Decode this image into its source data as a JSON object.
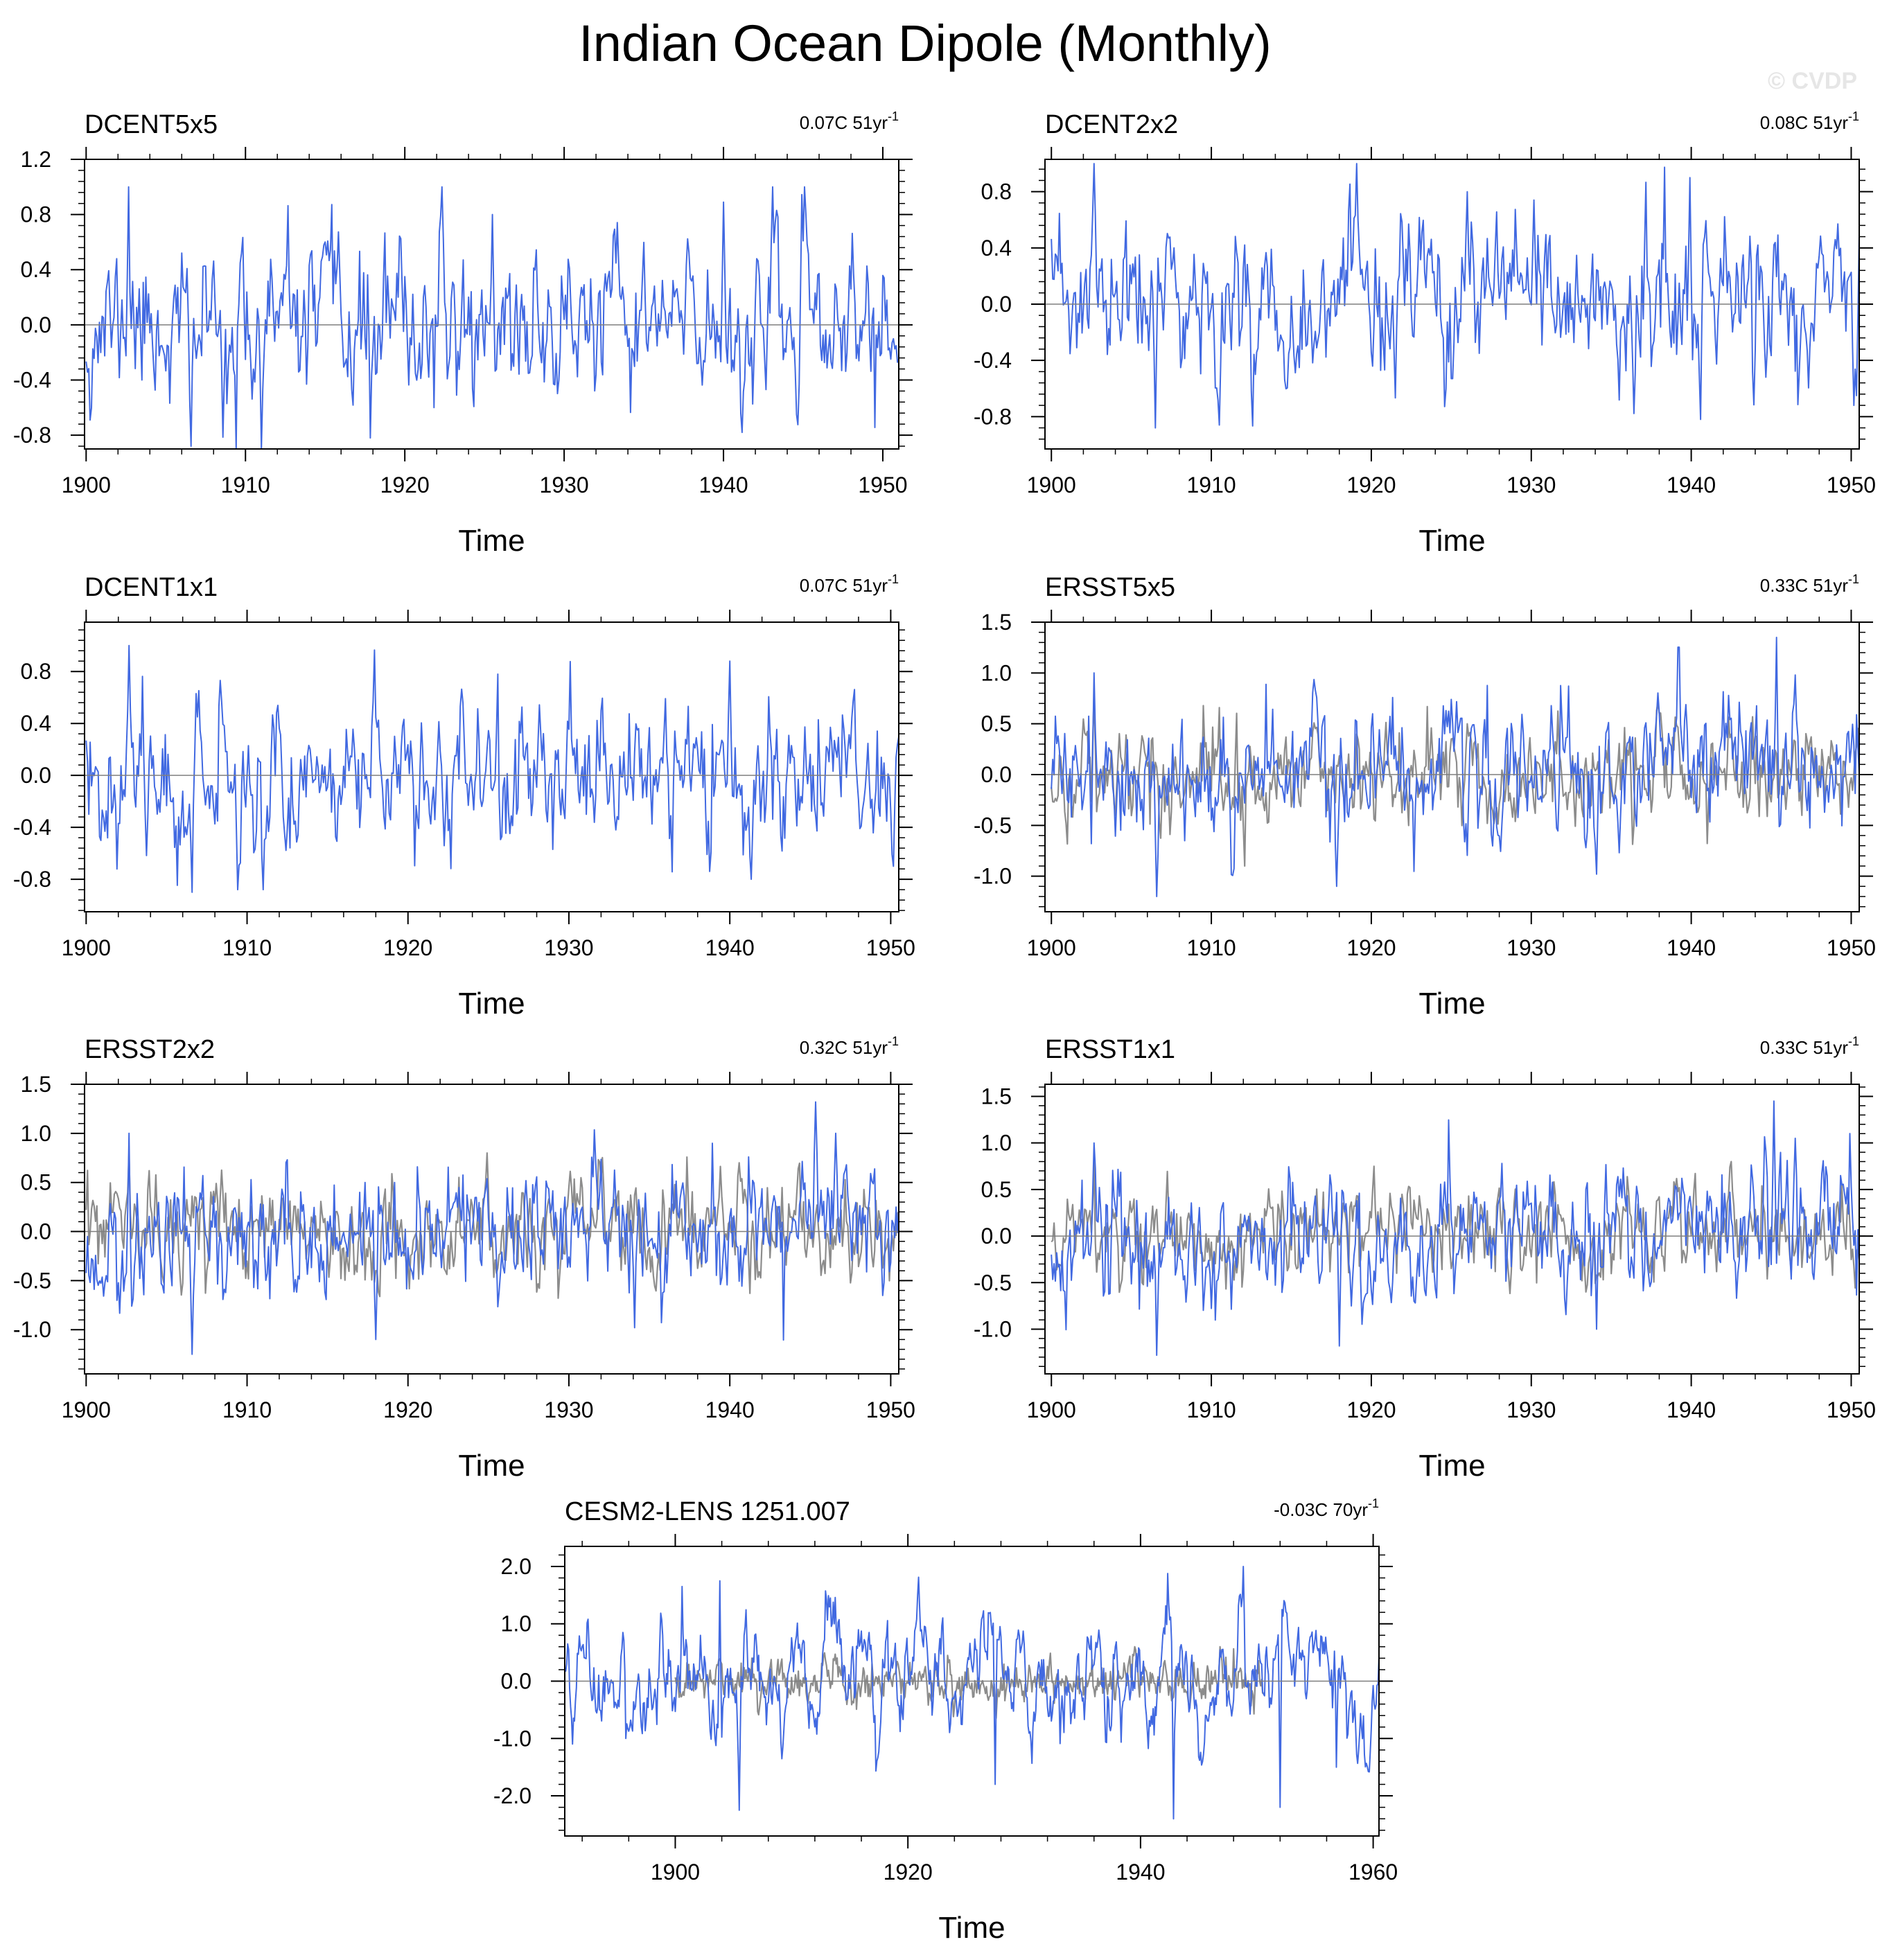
{
  "figure": {
    "title": "Indian Ocean Dipole (Monthly)",
    "watermark": "© CVDP",
    "colors": {
      "series": "#4169e1",
      "reference": "#8c8c8c",
      "frame": "#000000",
      "zero_line": "#7f7f7f"
    }
  },
  "chart_data": [
    {
      "type": "line",
      "title": "DCENT5x5",
      "trend": "0.07C 51yr",
      "trend_sup": "-1",
      "xlabel": "Time",
      "ylabel": "",
      "xlim": [
        1899.9,
        1951.0
      ],
      "ylim": [
        -0.9,
        1.2
      ],
      "xticks": [
        1900,
        1910,
        1920,
        1930,
        1940,
        1950
      ],
      "xtick_labels": [
        "1900",
        "1910",
        "1920",
        "1930",
        "1940",
        "1950"
      ],
      "yticks": [
        -0.8,
        -0.4,
        0.0,
        0.4,
        0.8,
        1.2
      ],
      "ytick_labels": [
        "-0.8",
        "-0.4",
        "0.0",
        "0.4",
        "0.8",
        "1.2"
      ],
      "series": [
        {
          "color": "#4169e1",
          "start": 1900.0,
          "end": 1951.0,
          "seed": 11,
          "sigma": 0.28,
          "lo": -0.9,
          "hi": 1.0,
          "peaks": [
            [
              1902.7,
              1.0
            ],
            [
              1906.6,
              -0.88
            ],
            [
              1909.4,
              -0.9
            ],
            [
              1911.0,
              -0.9
            ],
            [
              1917.8,
              -0.82
            ],
            [
              1925.5,
              0.8
            ],
            [
              1940.0,
              0.89
            ],
            [
              1941.2,
              -0.78
            ],
            [
              1943.3,
              0.83
            ]
          ]
        }
      ]
    },
    {
      "type": "line",
      "title": "DCENT2x2",
      "trend": "0.08C 51yr",
      "trend_sup": "-1",
      "xlabel": "Time",
      "ylabel": "",
      "xlim": [
        1899.6,
        1950.5
      ],
      "ylim": [
        -1.03,
        1.03
      ],
      "xticks": [
        1900,
        1910,
        1920,
        1930,
        1940,
        1950
      ],
      "xtick_labels": [
        "1900",
        "1910",
        "1920",
        "1930",
        "1940",
        "1950"
      ],
      "yticks": [
        -0.8,
        -0.4,
        0.0,
        0.4,
        0.8
      ],
      "ytick_labels": [
        "-0.8",
        "-0.4",
        "0.0",
        "0.4",
        "0.8"
      ],
      "series": [
        {
          "color": "#4169e1",
          "start": 1900.0,
          "end": 1950.5,
          "seed": 23,
          "sigma": 0.28,
          "lo": -0.9,
          "hi": 1.0,
          "peaks": [
            [
              1902.7,
              1.0
            ],
            [
              1906.5,
              -0.88
            ],
            [
              1910.5,
              -0.86
            ],
            [
              1926.0,
              0.8
            ],
            [
              1939.9,
              0.9
            ],
            [
              1940.6,
              -0.82
            ],
            [
              1950.2,
              -0.72
            ]
          ]
        }
      ]
    },
    {
      "type": "line",
      "title": "DCENT1x1",
      "trend": "0.07C 51yr",
      "trend_sup": "-1",
      "xlabel": "Time",
      "ylabel": "",
      "xlim": [
        1899.9,
        1950.5
      ],
      "ylim": [
        -1.05,
        1.18
      ],
      "xticks": [
        1900,
        1910,
        1920,
        1930,
        1940,
        1950
      ],
      "xtick_labels": [
        "1900",
        "1910",
        "1920",
        "1930",
        "1940",
        "1950"
      ],
      "yticks": [
        -0.8,
        -0.4,
        0.0,
        0.4,
        0.8
      ],
      "ytick_labels": [
        "-0.8",
        "-0.4",
        "0.0",
        "0.4",
        "0.8"
      ],
      "series": [
        {
          "color": "#4169e1",
          "start": 1900.0,
          "end": 1950.5,
          "seed": 37,
          "sigma": 0.28,
          "lo": -0.9,
          "hi": 1.0,
          "peaks": [
            [
              1902.7,
              1.0
            ],
            [
              1906.6,
              -0.9
            ],
            [
              1909.4,
              -0.88
            ],
            [
              1911.0,
              -0.88
            ],
            [
              1925.6,
              0.78
            ],
            [
              1940.0,
              0.88
            ],
            [
              1941.3,
              -0.8
            ],
            [
              1950.2,
              -0.7
            ]
          ]
        }
      ]
    },
    {
      "type": "line",
      "title": "ERSST5x5",
      "trend": "0.33C 51yr",
      "trend_sup": "-1",
      "xlabel": "Time",
      "ylabel": "",
      "xlim": [
        1899.6,
        1950.5
      ],
      "ylim": [
        -1.35,
        1.5
      ],
      "xticks": [
        1900,
        1910,
        1920,
        1930,
        1940,
        1950
      ],
      "xtick_labels": [
        "1900",
        "1910",
        "1920",
        "1930",
        "1940",
        "1950"
      ],
      "yticks": [
        -1.0,
        -0.5,
        0.0,
        0.5,
        1.0,
        1.5
      ],
      "ytick_labels": [
        "-1.0",
        "-0.5",
        "0.0",
        "0.5",
        "1.0",
        "1.5"
      ],
      "series": [
        {
          "color": "#8c8c8c",
          "start": 1900.0,
          "end": 1950.5,
          "seed": 41,
          "sigma": 0.26,
          "lo": -0.9,
          "hi": 0.8,
          "peaks": [
            [
              1902.7,
              0.8
            ]
          ]
        },
        {
          "color": "#4169e1",
          "start": 1900.0,
          "end": 1950.5,
          "seed": 43,
          "sigma": 0.33,
          "lo": -1.2,
          "hi": 1.35,
          "trend": 0.28,
          "peaks": [
            [
              1902.7,
              1.0
            ],
            [
              1906.6,
              -1.2
            ],
            [
              1917.8,
              -1.1
            ],
            [
              1934.1,
              -0.98
            ],
            [
              1945.3,
              1.35
            ],
            [
              1946.5,
              0.98
            ]
          ]
        }
      ]
    },
    {
      "type": "line",
      "title": "ERSST2x2",
      "trend": "0.32C 51yr",
      "trend_sup": "-1",
      "xlabel": "Time",
      "ylabel": "",
      "xlim": [
        1899.9,
        1950.5
      ],
      "ylim": [
        -1.45,
        1.5
      ],
      "xticks": [
        1900,
        1910,
        1920,
        1930,
        1940,
        1950
      ],
      "xtick_labels": [
        "1900",
        "1910",
        "1920",
        "1930",
        "1940",
        "1950"
      ],
      "yticks": [
        -1.0,
        -0.5,
        0.0,
        0.5,
        1.0,
        1.5
      ],
      "ytick_labels": [
        "-1.0",
        "-0.5",
        "0.0",
        "0.5",
        "1.0",
        "1.5"
      ],
      "series": [
        {
          "color": "#8c8c8c",
          "start": 1900.0,
          "end": 1950.5,
          "seed": 53,
          "sigma": 0.26,
          "lo": -0.9,
          "hi": 0.8,
          "peaks": [
            [
              1902.7,
              0.8
            ]
          ]
        },
        {
          "color": "#4169e1",
          "start": 1900.0,
          "end": 1950.5,
          "seed": 59,
          "sigma": 0.33,
          "lo": -1.25,
          "hi": 1.32,
          "trend": 0.28,
          "peaks": [
            [
              1902.7,
              1.0
            ],
            [
              1906.6,
              -1.25
            ],
            [
              1918.0,
              -1.1
            ],
            [
              1934.1,
              -0.98
            ],
            [
              1945.3,
              1.32
            ],
            [
              1946.6,
              1.0
            ]
          ]
        }
      ]
    },
    {
      "type": "line",
      "title": "ERSST1x1",
      "trend": "0.33C 51yr",
      "trend_sup": "-1",
      "xlabel": "Time",
      "ylabel": "",
      "xlim": [
        1899.6,
        1950.5
      ],
      "ylim": [
        -1.48,
        1.63
      ],
      "xticks": [
        1900,
        1910,
        1920,
        1930,
        1940,
        1950
      ],
      "xtick_labels": [
        "1900",
        "1910",
        "1920",
        "1930",
        "1940",
        "1950"
      ],
      "yticks": [
        -1.0,
        -0.5,
        0.0,
        0.5,
        1.0,
        1.5
      ],
      "ytick_labels": [
        "-1.0",
        "-0.5",
        "0.0",
        "0.5",
        "1.0",
        "1.5"
      ],
      "series": [
        {
          "color": "#8c8c8c",
          "start": 1900.0,
          "end": 1950.5,
          "seed": 61,
          "sigma": 0.26,
          "lo": -0.9,
          "hi": 0.8,
          "peaks": [
            [
              1902.7,
              0.8
            ]
          ]
        },
        {
          "color": "#4169e1",
          "start": 1900.0,
          "end": 1950.5,
          "seed": 67,
          "sigma": 0.34,
          "lo": -1.28,
          "hi": 1.45,
          "trend": 0.3,
          "peaks": [
            [
              1902.7,
              1.0
            ],
            [
              1906.6,
              -1.28
            ],
            [
              1918.0,
              -1.18
            ],
            [
              1934.1,
              -1.0
            ],
            [
              1945.2,
              1.45
            ],
            [
              1946.5,
              1.05
            ]
          ]
        }
      ]
    },
    {
      "type": "line",
      "title": "CESM2-LENS 1251.007",
      "trend": "-0.03C 70yr",
      "trend_sup": "-1",
      "xlabel": "Time",
      "ylabel": "",
      "xlim": [
        1890.5,
        1960.5
      ],
      "ylim": [
        -2.7,
        2.35
      ],
      "xticks": [
        1900,
        1920,
        1940,
        1960
      ],
      "xtick_labels": [
        "1900",
        "1920",
        "1940",
        "1960"
      ],
      "yticks": [
        -2.0,
        -1.0,
        0.0,
        1.0,
        2.0
      ],
      "ytick_labels": [
        "-2.0",
        "-1.0",
        "0.0",
        "1.0",
        "2.0"
      ],
      "series": [
        {
          "color": "#8c8c8c",
          "start": 1900.0,
          "end": 1950.5,
          "seed": 71,
          "sigma": 0.2,
          "lo": -0.7,
          "hi": 0.6,
          "peaks": []
        },
        {
          "color": "#4169e1",
          "start": 1890.5,
          "end": 1960.5,
          "seed": 73,
          "sigma": 0.7,
          "lo": -2.4,
          "hi": 2.0,
          "smooth": 0.9,
          "peaks": [
            [
              1900.6,
              1.65
            ],
            [
              1903.8,
              1.75
            ],
            [
              1905.5,
              -2.25
            ],
            [
              1927.5,
              -1.8
            ],
            [
              1942.8,
              -2.4
            ],
            [
              1948.8,
              2.0
            ],
            [
              1952.0,
              -2.2
            ],
            [
              1956.8,
              -1.5
            ]
          ]
        }
      ]
    }
  ]
}
